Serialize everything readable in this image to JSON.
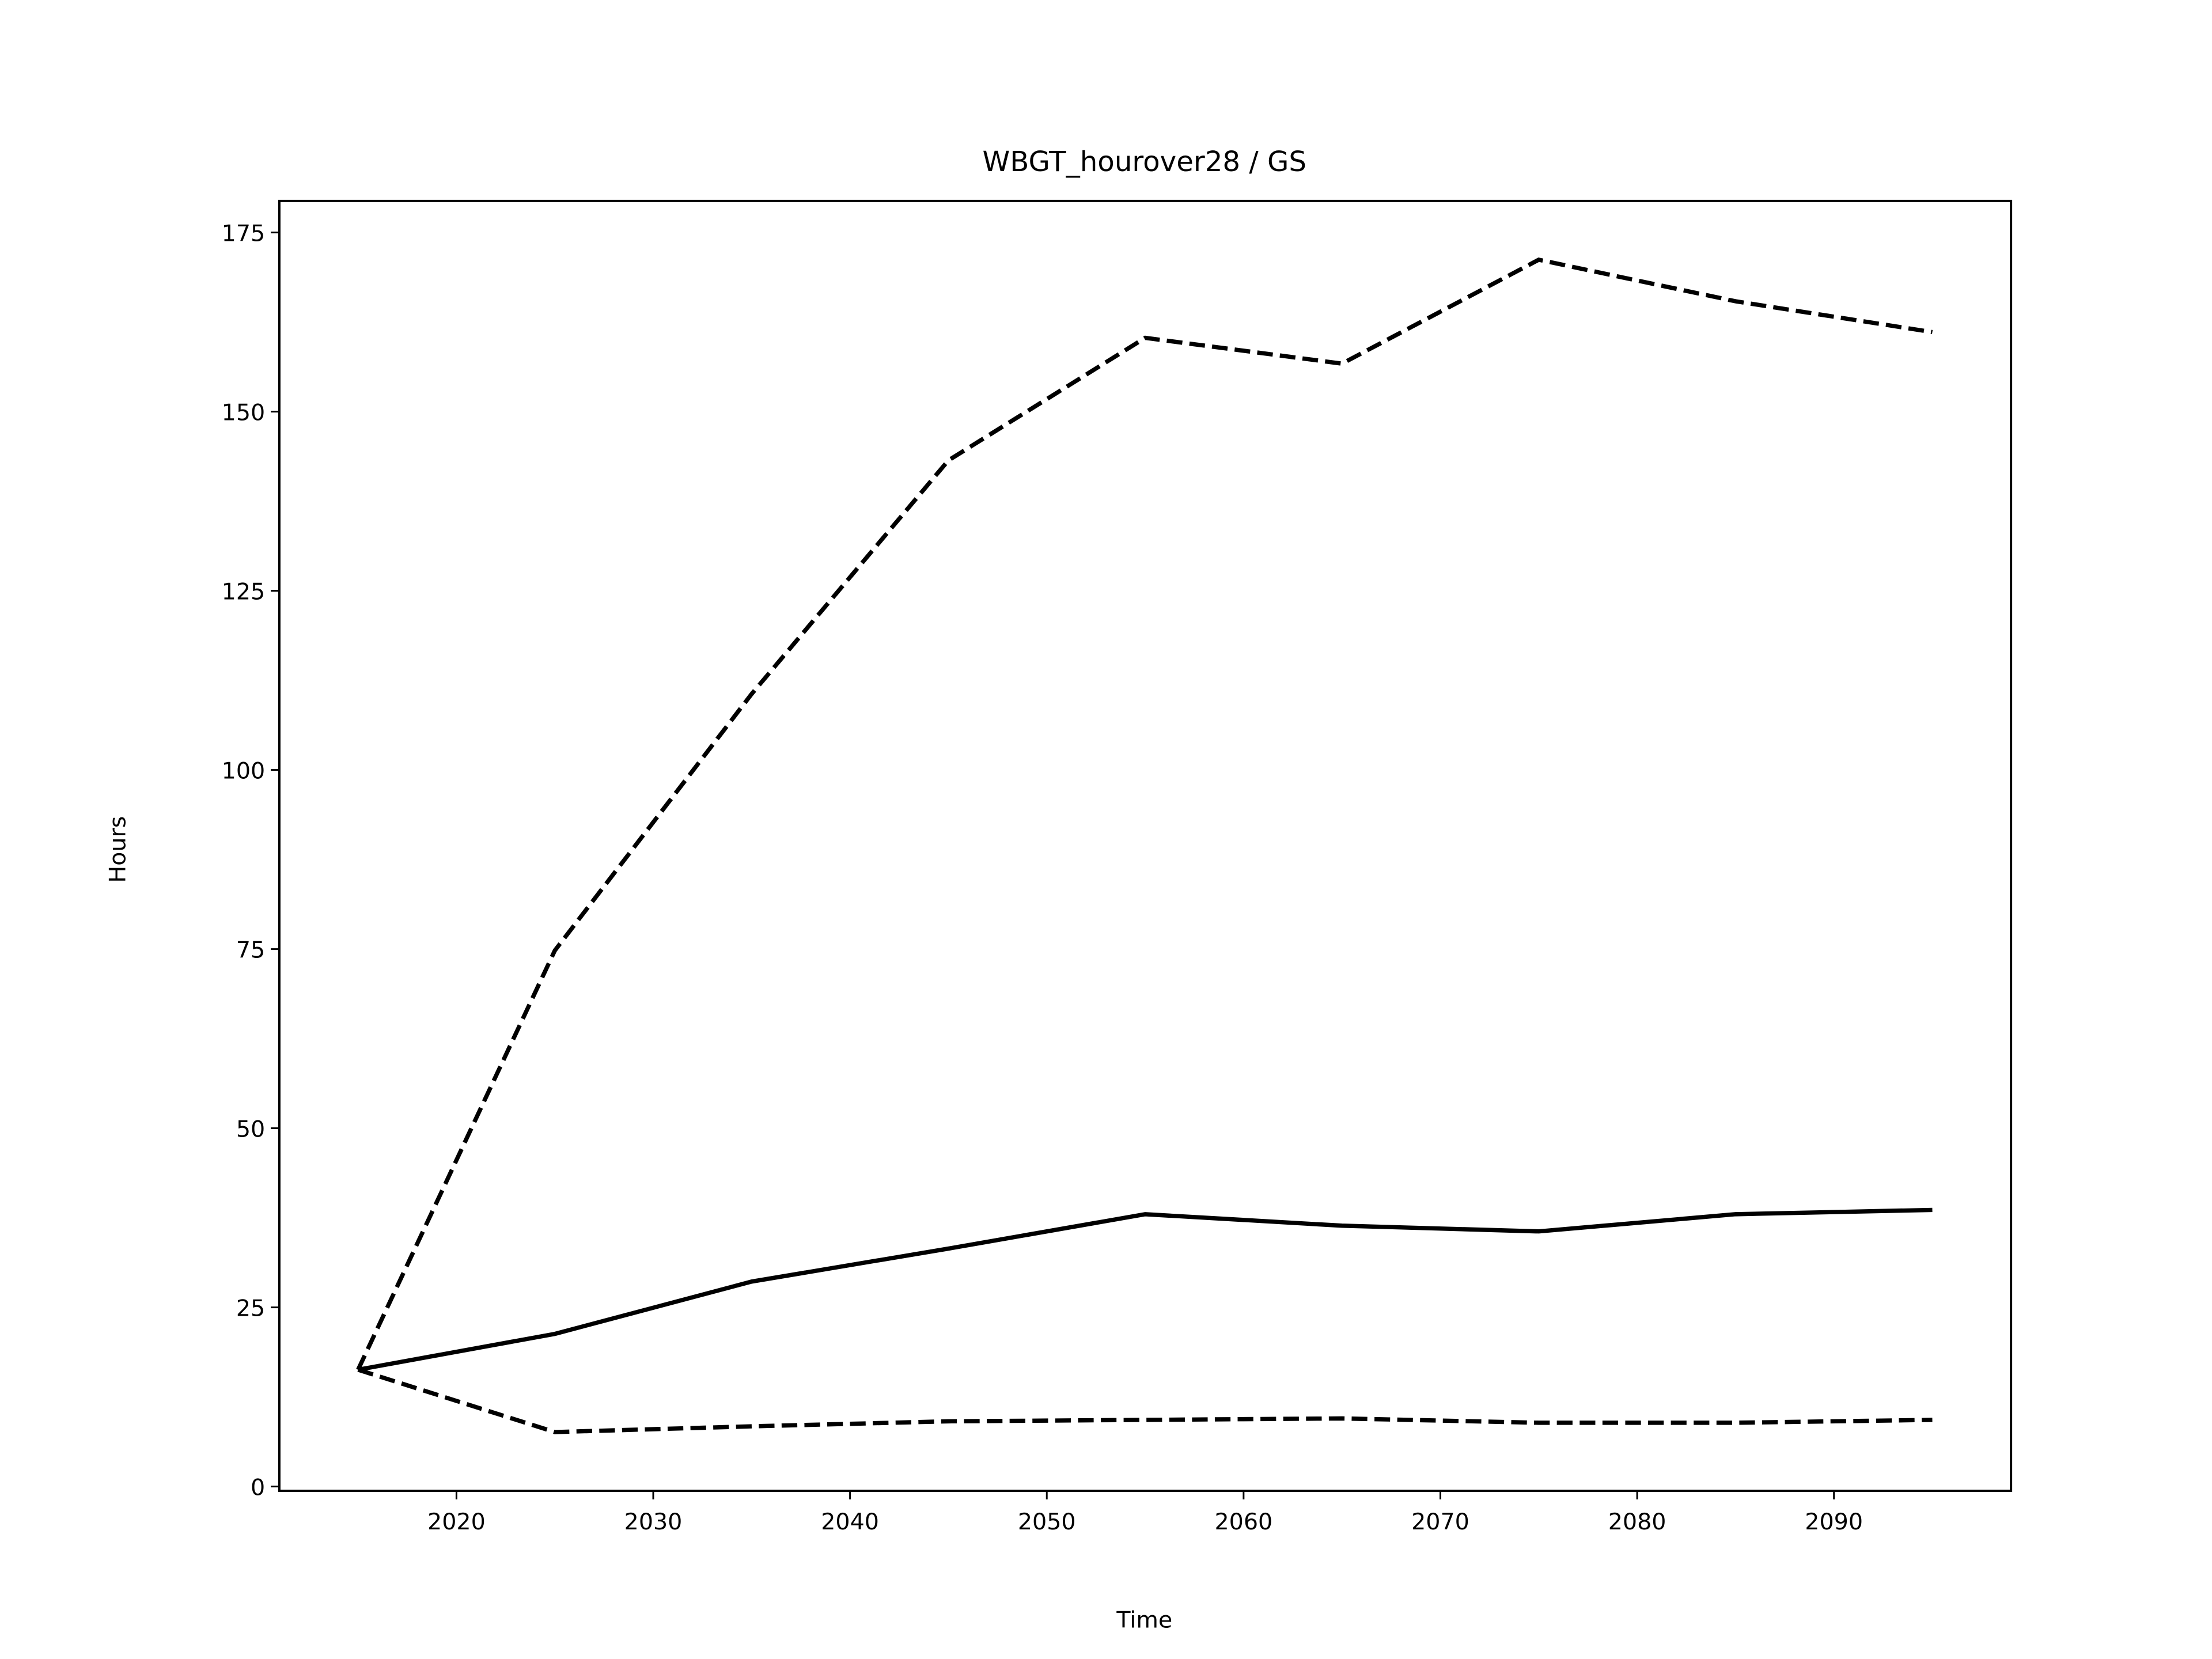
{
  "chart_data": {
    "type": "line",
    "title": "WBGT_hourover28 / GS",
    "xlabel": "Time",
    "ylabel": "Hours",
    "x": [
      2015,
      2025,
      2035,
      2045,
      2055,
      2065,
      2075,
      2085,
      2095
    ],
    "series": [
      {
        "color": "#000000",
        "dash": true,
        "values": [
          16.3,
          74.8,
          110.6,
          143.2,
          160.3,
          156.7,
          171.2,
          165.4,
          161.1
        ]
      },
      {
        "color": "#000000",
        "dash": false,
        "values": [
          16.3,
          21.3,
          28.6,
          33.2,
          38.0,
          36.4,
          35.6,
          38.0,
          38.6
        ]
      },
      {
        "color": "#000000",
        "dash": true,
        "values": [
          16.3,
          7.6,
          8.4,
          9.1,
          9.3,
          9.5,
          8.9,
          8.9,
          9.3
        ]
      }
    ],
    "xlim": [
      2011,
      2099
    ],
    "xticks": [
      2020,
      2030,
      2040,
      2050,
      2060,
      2070,
      2080,
      2090
    ],
    "ylim": [
      -0.6,
      179.4
    ],
    "yticks": [
      0,
      25,
      50,
      75,
      100,
      125,
      150,
      175
    ],
    "grid": false
  }
}
